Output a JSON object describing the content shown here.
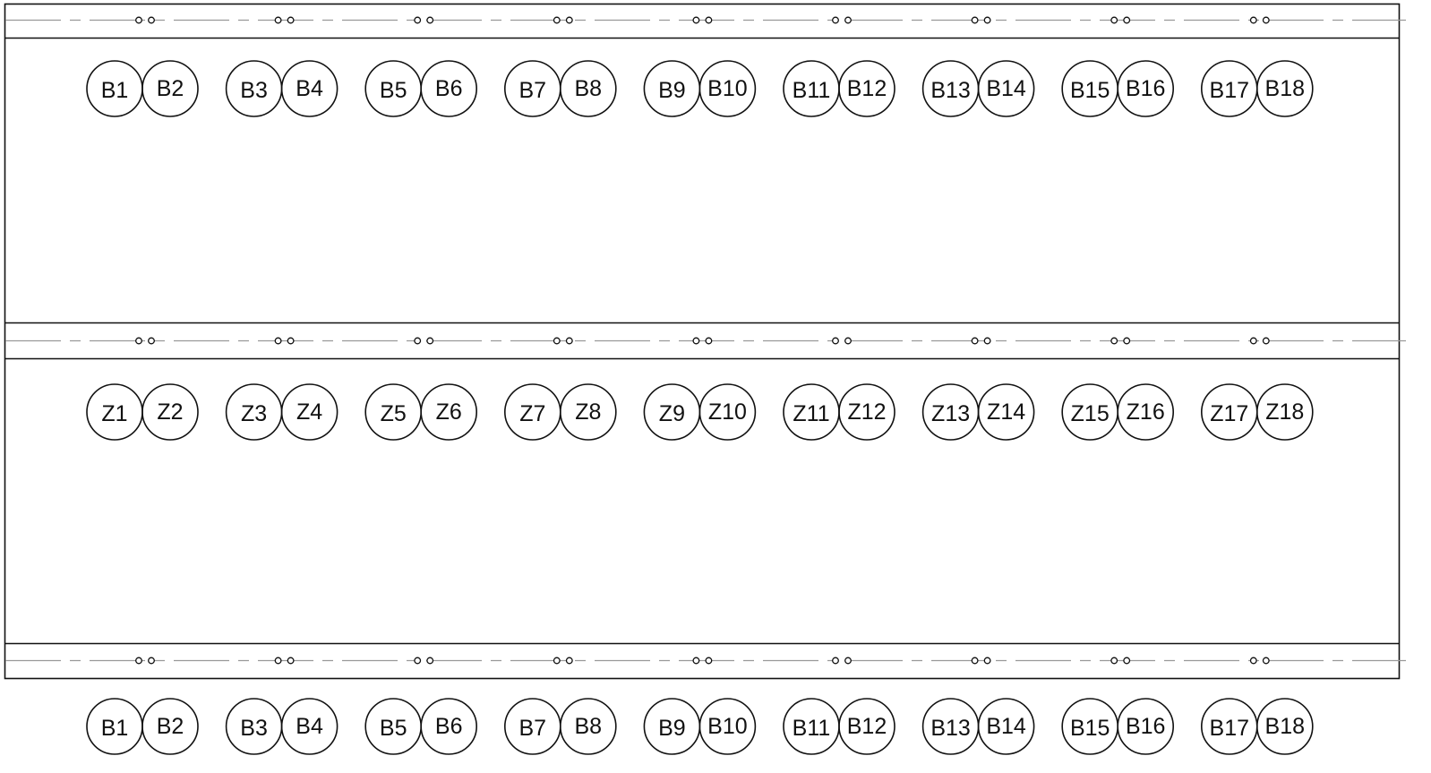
{
  "rows": [
    {
      "name": "top-row",
      "labels": [
        "B1",
        "B2",
        "B3",
        "B4",
        "B5",
        "B6",
        "B7",
        "B8",
        "B9",
        "B10",
        "B11",
        "B12",
        "B13",
        "B14",
        "B15",
        "B16",
        "B17",
        "B18"
      ]
    },
    {
      "name": "middle-row",
      "labels": [
        "Z1",
        "Z2",
        "Z3",
        "Z4",
        "Z5",
        "Z6",
        "Z7",
        "Z8",
        "Z9",
        "Z10",
        "Z11",
        "Z12",
        "Z13",
        "Z14",
        "Z15",
        "Z16",
        "Z17",
        "Z18"
      ]
    },
    {
      "name": "bottom-row",
      "labels": [
        "B1",
        "B2",
        "B3",
        "B4",
        "B5",
        "B6",
        "B7",
        "B8",
        "B9",
        "B10",
        "B11",
        "B12",
        "B13",
        "B14",
        "B15",
        "B16",
        "B17",
        "B18"
      ]
    }
  ],
  "colors": {
    "line": "#111111",
    "centerline": "#999999"
  }
}
